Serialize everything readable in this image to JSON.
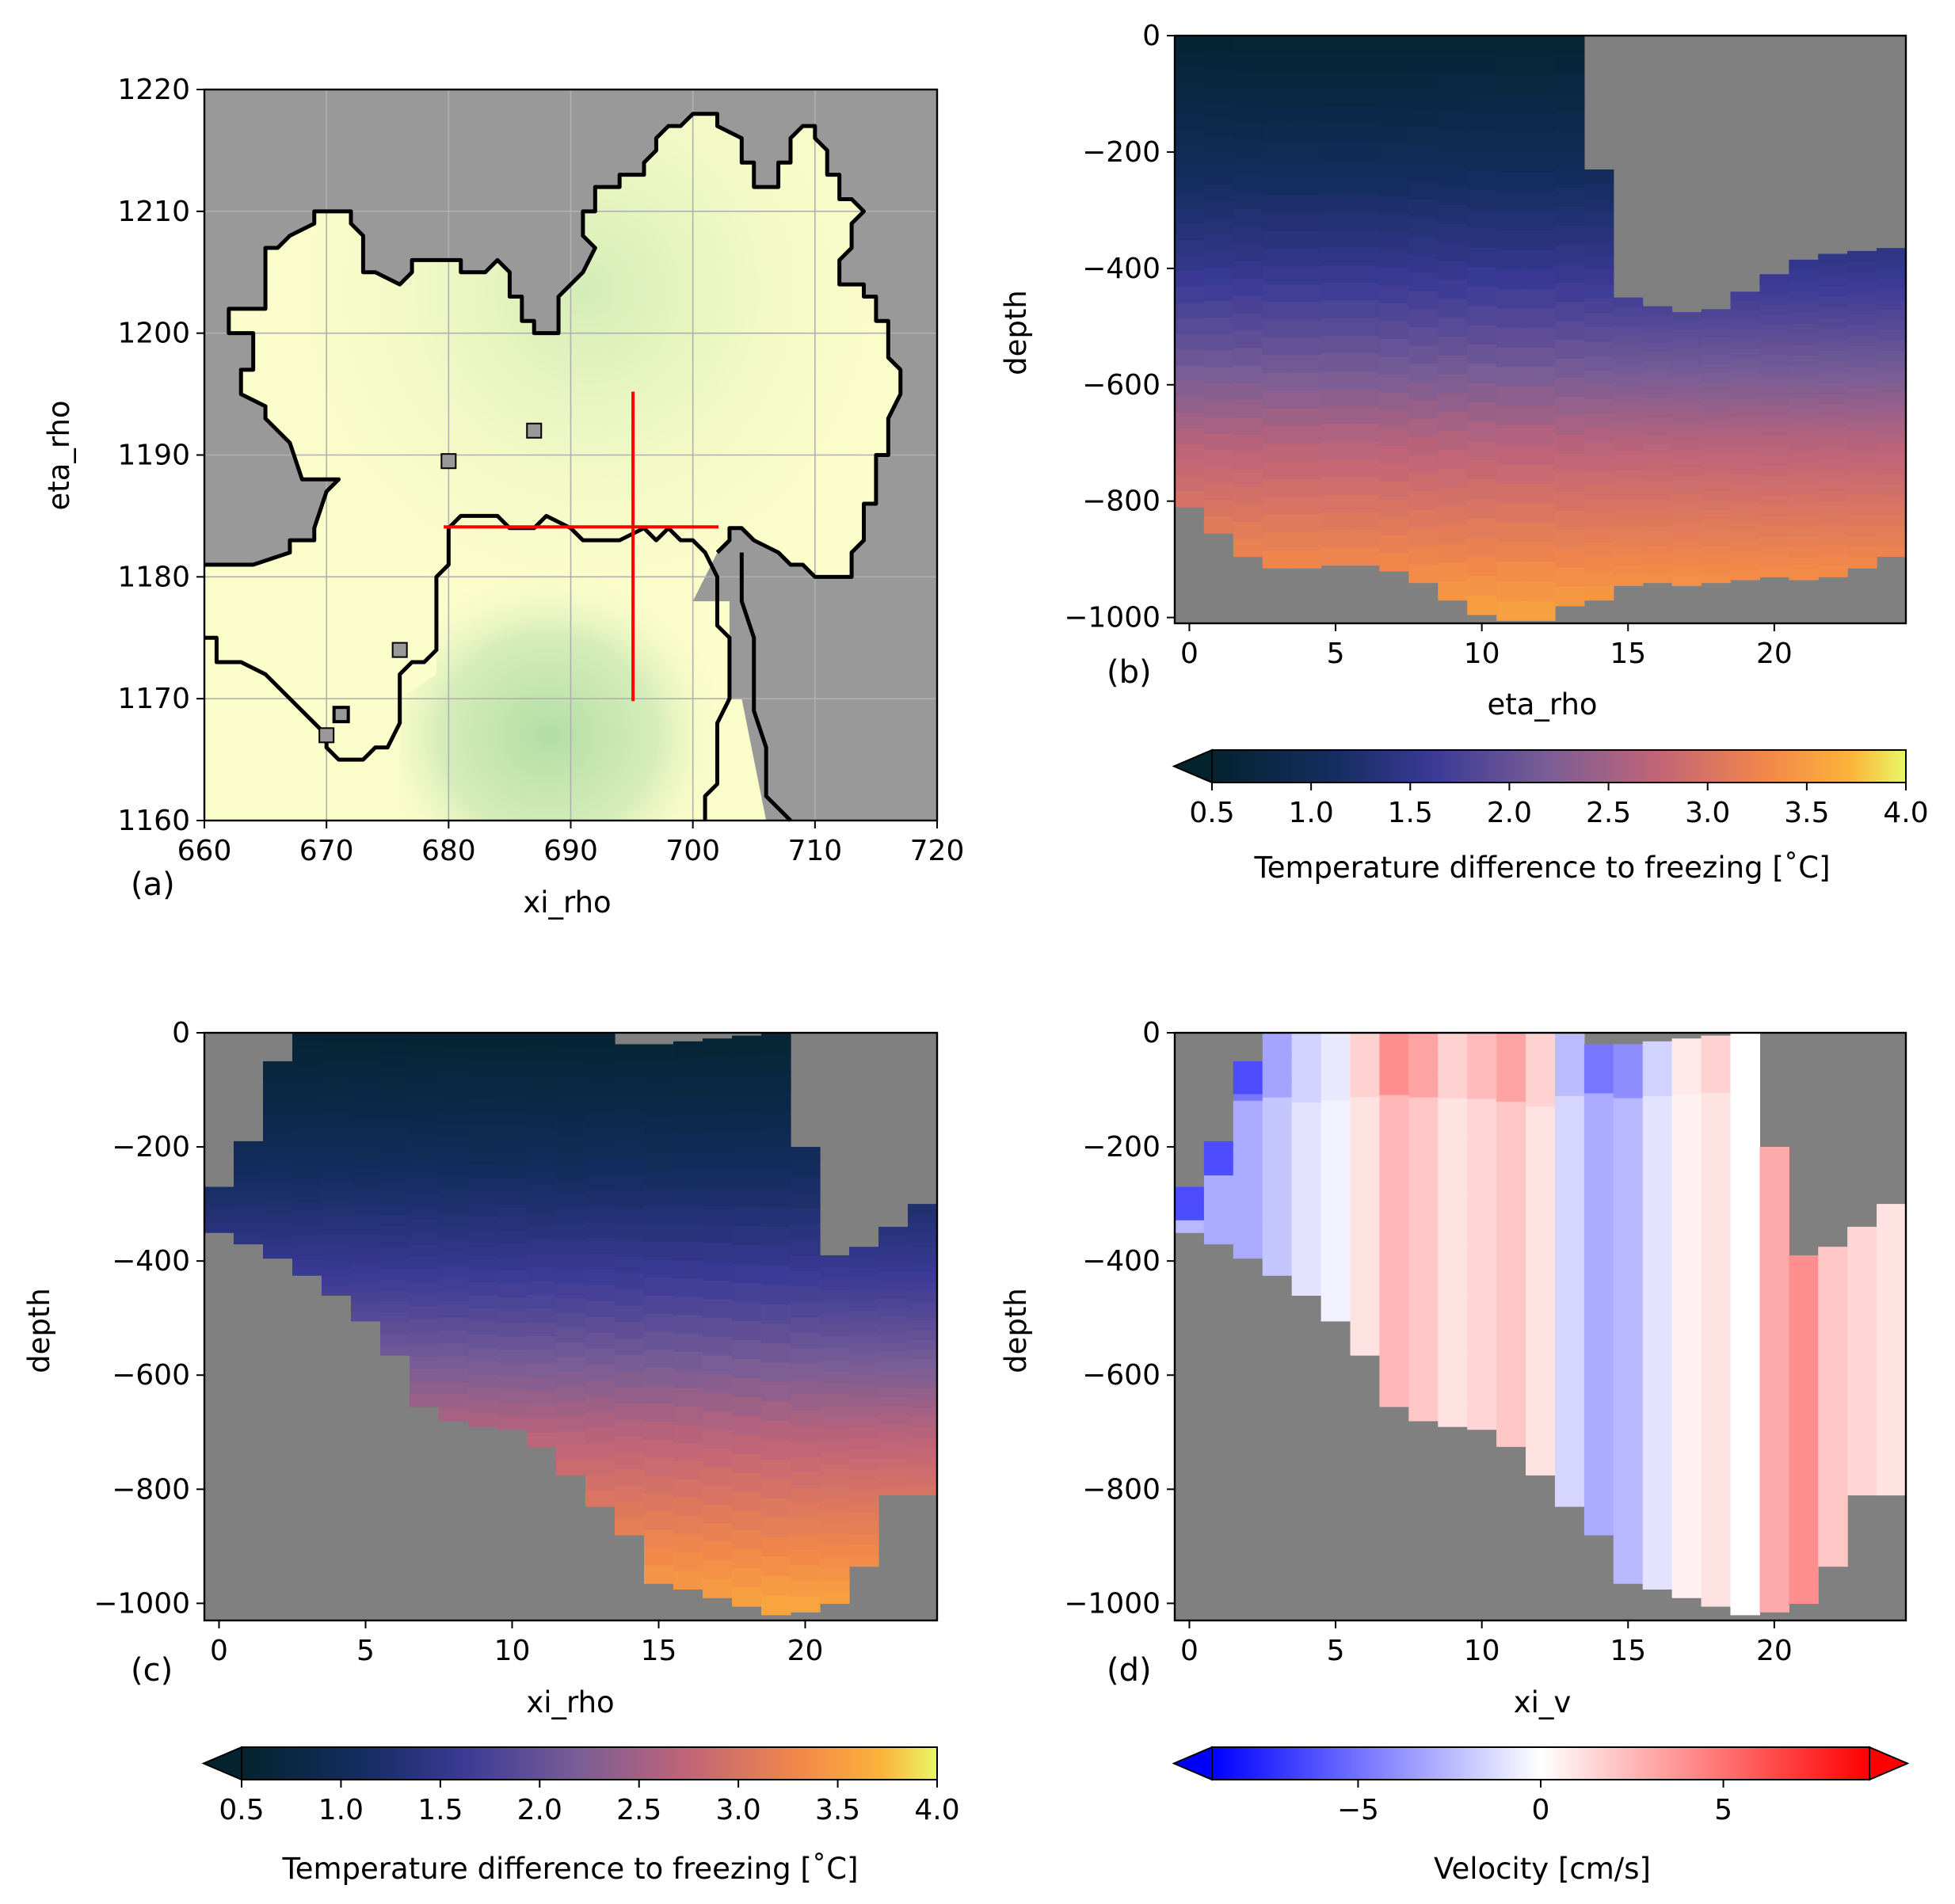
{
  "chart_data": [
    {
      "panel": "(a)",
      "type": "heatmap",
      "title": "",
      "xlabel": "xi_rho",
      "ylabel": "eta_rho",
      "xlim": [
        660,
        720
      ],
      "ylim": [
        1160,
        1220
      ],
      "xticks": [
        660,
        670,
        680,
        690,
        700,
        710,
        720
      ],
      "yticks": [
        1160,
        1170,
        1180,
        1190,
        1200,
        1210,
        1220
      ],
      "grid": true,
      "colors": {
        "land": "#999999",
        "ice": "#fbfdca",
        "shelf_green": "#b9e1a9",
        "section": "#ff0000",
        "coastline": "#000000"
      },
      "coastline": [
        [
          660,
          1181
        ],
        [
          664,
          1181
        ],
        [
          667,
          1182
        ],
        [
          667,
          1183
        ],
        [
          669,
          1183
        ],
        [
          669,
          1184
        ],
        [
          670,
          1187
        ],
        [
          671,
          1188
        ],
        [
          668,
          1188
        ],
        [
          667,
          1191
        ],
        [
          665,
          1193
        ],
        [
          665,
          1194
        ],
        [
          663,
          1195
        ],
        [
          663,
          1197
        ],
        [
          664,
          1197
        ],
        [
          664,
          1200
        ],
        [
          662,
          1200
        ],
        [
          662,
          1202
        ],
        [
          663,
          1202
        ],
        [
          665,
          1202
        ],
        [
          665,
          1207
        ],
        [
          666,
          1207
        ],
        [
          667,
          1208
        ],
        [
          669,
          1209
        ],
        [
          669,
          1210
        ],
        [
          670,
          1210
        ],
        [
          672,
          1210
        ],
        [
          672,
          1209
        ],
        [
          673,
          1208
        ],
        [
          673,
          1205
        ],
        [
          674,
          1205
        ],
        [
          676,
          1204
        ],
        [
          677,
          1205
        ],
        [
          677,
          1206
        ],
        [
          679,
          1206
        ],
        [
          681,
          1206
        ],
        [
          681,
          1205
        ],
        [
          683,
          1205
        ],
        [
          684,
          1206
        ],
        [
          685,
          1205
        ],
        [
          685,
          1203
        ],
        [
          686,
          1203
        ],
        [
          686,
          1201
        ],
        [
          687,
          1201
        ],
        [
          687,
          1200
        ],
        [
          689,
          1200
        ],
        [
          689,
          1203
        ],
        [
          691,
          1205
        ],
        [
          692,
          1207
        ],
        [
          691,
          1208
        ],
        [
          691,
          1210
        ],
        [
          692,
          1210
        ],
        [
          692,
          1212
        ],
        [
          694,
          1212
        ],
        [
          694,
          1213
        ],
        [
          696,
          1213
        ],
        [
          696,
          1214
        ],
        [
          697,
          1215
        ],
        [
          697,
          1216
        ],
        [
          698,
          1217
        ],
        [
          699,
          1217
        ],
        [
          700,
          1218
        ],
        [
          702,
          1218
        ],
        [
          702,
          1217
        ],
        [
          704,
          1216
        ],
        [
          704,
          1214
        ],
        [
          705,
          1214
        ],
        [
          705,
          1212
        ],
        [
          707,
          1212
        ],
        [
          707,
          1213
        ],
        [
          707,
          1214
        ],
        [
          708,
          1214
        ],
        [
          708,
          1216
        ],
        [
          709,
          1217
        ],
        [
          710,
          1217
        ],
        [
          710,
          1216
        ],
        [
          711,
          1215
        ],
        [
          711,
          1213
        ],
        [
          712,
          1213
        ],
        [
          712,
          1211
        ],
        [
          713,
          1211
        ],
        [
          714,
          1210
        ],
        [
          713,
          1209
        ],
        [
          713,
          1207
        ],
        [
          712,
          1206
        ],
        [
          712,
          1204
        ],
        [
          714,
          1204
        ],
        [
          714,
          1203
        ],
        [
          715,
          1203
        ],
        [
          715,
          1201
        ],
        [
          716,
          1201
        ],
        [
          716,
          1198
        ],
        [
          717,
          1197
        ],
        [
          717,
          1195
        ],
        [
          716,
          1193
        ],
        [
          716,
          1190
        ],
        [
          715,
          1190
        ],
        [
          715,
          1186
        ],
        [
          714,
          1186
        ],
        [
          714,
          1183
        ],
        [
          713,
          1182
        ],
        [
          713,
          1180
        ],
        [
          710,
          1180
        ],
        [
          709,
          1181
        ],
        [
          708,
          1181
        ],
        [
          707,
          1182
        ],
        [
          705,
          1183
        ],
        [
          704,
          1184
        ],
        [
          703,
          1184
        ],
        [
          703,
          1183
        ],
        [
          702,
          1182
        ]
      ],
      "section_lines": [
        {
          "x": [
            679.6,
            702.1
          ],
          "y": [
            1184.1,
            1184.1
          ]
        },
        {
          "x": [
            695.1,
            695.1
          ],
          "y": [
            1169.8,
            1195.2
          ]
        }
      ]
    },
    {
      "panel": "(b)",
      "type": "heatmap",
      "title": "",
      "xlabel": "eta_rho",
      "ylabel": "depth",
      "xlim": [
        -0.5,
        24.5
      ],
      "ylim": [
        -1010,
        0
      ],
      "xticks": [
        0,
        5,
        10,
        15,
        20
      ],
      "yticks": [
        0,
        -200,
        -400,
        -600,
        -800,
        -1000
      ],
      "surface_depth": [
        0,
        0,
        0,
        0,
        0,
        0,
        0,
        0,
        0,
        0,
        0,
        0,
        0,
        0,
        -230,
        -450,
        -465,
        -475,
        -470,
        -440,
        -410,
        -385,
        -375,
        -370,
        -365
      ],
      "bottom_depth": [
        -810,
        -855,
        -895,
        -915,
        -915,
        -910,
        -910,
        -920,
        -940,
        -970,
        -995,
        -1005,
        -1005,
        -980,
        -970,
        -945,
        -940,
        -945,
        -940,
        -935,
        -930,
        -935,
        -930,
        -915,
        -895
      ],
      "colorbar": {
        "label": "Temperature difference to freezing [˚C]",
        "min": 0.5,
        "max": 4.0,
        "ticks": [
          "0.5",
          "1.0",
          "1.5",
          "2.0",
          "2.5",
          "3.0",
          "3.5",
          "4.0"
        ],
        "extend": "min"
      }
    },
    {
      "panel": "(c)",
      "type": "heatmap",
      "title": "",
      "xlabel": "xi_rho",
      "ylabel": "depth",
      "xlim": [
        -0.5,
        24.5
      ],
      "ylim": [
        -1030,
        0
      ],
      "xticks": [
        0,
        5,
        10,
        15,
        20
      ],
      "yticks": [
        0,
        -200,
        -400,
        -600,
        -800,
        -1000
      ],
      "surface_depth": [
        -270,
        -190,
        -50,
        0,
        0,
        0,
        0,
        0,
        0,
        0,
        0,
        0,
        0,
        0,
        -20,
        -20,
        -15,
        -10,
        -5,
        0,
        -200,
        -390,
        -375,
        -340,
        -300
      ],
      "bottom_depth": [
        -350,
        -370,
        -395,
        -425,
        -460,
        -505,
        -565,
        -655,
        -680,
        -690,
        -695,
        -725,
        -775,
        -830,
        -880,
        -965,
        -975,
        -990,
        -1005,
        -1020,
        -1015,
        -1000,
        -935,
        -810,
        -810
      ],
      "colorbar": {
        "label": "Temperature difference to freezing [˚C]",
        "min": 0.5,
        "max": 4.0,
        "ticks": [
          "0.5",
          "1.0",
          "1.5",
          "2.0",
          "2.5",
          "3.0",
          "3.5",
          "4.0"
        ],
        "extend": "min"
      }
    },
    {
      "panel": "(d)",
      "type": "heatmap",
      "title": "",
      "xlabel": "xi_v",
      "ylabel": "depth",
      "xlim": [
        -0.5,
        24.5
      ],
      "ylim": [
        -1030,
        0
      ],
      "xticks": [
        0,
        5,
        10,
        15,
        20
      ],
      "yticks": [
        0,
        -200,
        -400,
        -600,
        -800,
        -1000
      ],
      "surface_depth": [
        -270,
        -190,
        -50,
        0,
        0,
        0,
        0,
        0,
        0,
        0,
        0,
        0,
        0,
        0,
        -20,
        -20,
        -15,
        -10,
        -5,
        0,
        -200,
        -390,
        -375,
        -340,
        -300
      ],
      "bottom_depth": [
        -350,
        -370,
        -395,
        -425,
        -460,
        -505,
        -565,
        -655,
        -680,
        -690,
        -695,
        -725,
        -775,
        -830,
        -880,
        -965,
        -975,
        -990,
        -1005,
        -1020,
        -1015,
        -1000,
        -935,
        -810,
        -810
      ],
      "column_velocity_cm_s": [
        -2.5,
        -3,
        -3,
        -2,
        -1,
        -0.5,
        1,
        2.5,
        2,
        1,
        1.5,
        2,
        1,
        -1.5,
        -3,
        -2.5,
        -1,
        0.5,
        1,
        0,
        3,
        4,
        2,
        1.5,
        1
      ],
      "colorbar": {
        "label": "Velocity [cm/s]",
        "min": -9,
        "max": 9,
        "ticks": [
          "−5",
          "0",
          "5"
        ],
        "extend": "both"
      }
    }
  ]
}
